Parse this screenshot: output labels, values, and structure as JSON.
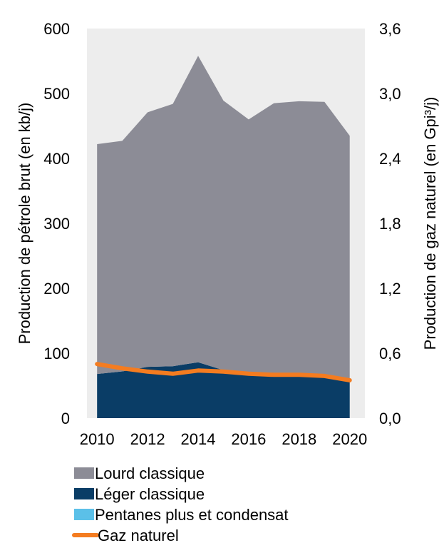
{
  "chart_data": {
    "type": "area",
    "x": [
      2010,
      2011,
      2012,
      2013,
      2014,
      2015,
      2016,
      2017,
      2018,
      2019,
      2020
    ],
    "x_tick_labels": [
      "2010",
      "2012",
      "2014",
      "2016",
      "2018",
      "2020"
    ],
    "ylabel_left": "Production de pétrole brut (en kb/j)",
    "ylabel_right": "Production de gaz naturel  (en Gpi³/j)",
    "ylim_left": [
      0,
      600
    ],
    "ylim_right": [
      0,
      3.6
    ],
    "left_tick_labels": [
      "0",
      "100",
      "200",
      "300",
      "400",
      "500",
      "600"
    ],
    "right_tick_labels": [
      "0,0",
      "0,6",
      "1,2",
      "1,8",
      "2,4",
      "3,0",
      "3,6"
    ],
    "grid": false,
    "legend_position": "bottom",
    "series": [
      {
        "name": "Pentanes plus et condensat",
        "kind": "area",
        "axis": "left",
        "color": "#5BC0E8",
        "values": [
          0,
          0,
          0,
          0,
          0,
          0,
          0,
          0,
          0,
          0,
          0
        ]
      },
      {
        "name": "Léger classique",
        "kind": "area",
        "axis": "left",
        "color": "#0A3D66",
        "values": [
          68,
          72,
          79,
          80,
          86,
          74,
          70,
          67,
          67,
          64,
          57
        ]
      },
      {
        "name": "Lourd classique",
        "kind": "area",
        "axis": "left",
        "color": "#8C8C96",
        "values": [
          354,
          355,
          392,
          404,
          472,
          415,
          390,
          418,
          421,
          423,
          378
        ]
      },
      {
        "name": "Gaz naturel",
        "kind": "line",
        "axis": "right",
        "color": "#F47C20",
        "values": [
          0.5,
          0.46,
          0.43,
          0.41,
          0.44,
          0.43,
          0.41,
          0.4,
          0.4,
          0.39,
          0.35
        ]
      }
    ],
    "legend_order": [
      "Lourd classique",
      "Léger classique",
      "Pentanes plus et condensat",
      "Gaz naturel"
    ]
  }
}
